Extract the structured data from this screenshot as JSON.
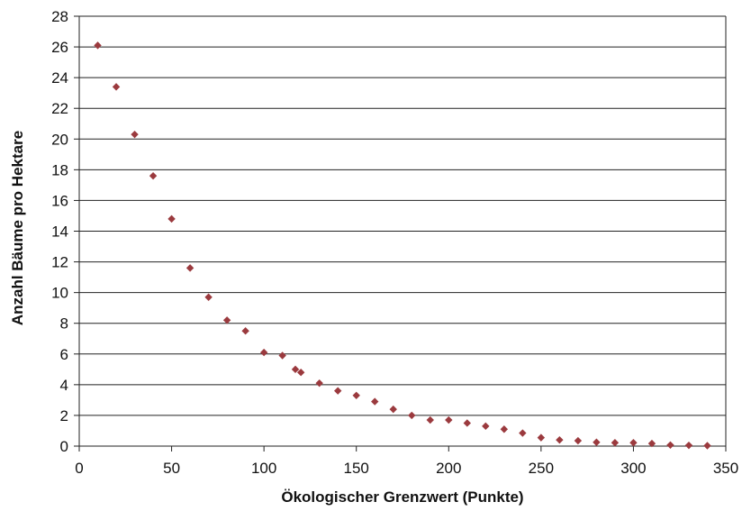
{
  "chart_data": {
    "type": "scatter",
    "title": "",
    "xlabel": "Ökologischer Grenzwert (Punkte)",
    "ylabel": "Anzahl Bäume pro Hektare",
    "xlim": [
      0,
      350
    ],
    "ylim": [
      0,
      28
    ],
    "xticks": [
      "0",
      "50",
      "100",
      "150",
      "200",
      "250",
      "300",
      "350"
    ],
    "yticks": [
      "0",
      "2",
      "4",
      "6",
      "8",
      "10",
      "12",
      "14",
      "16",
      "18",
      "20",
      "22",
      "24",
      "26",
      "28"
    ],
    "grid": "horizontal",
    "legend": "none",
    "marker": "diamond",
    "marker_color": "#9B3A3E",
    "series": [
      {
        "x": [
          10,
          20,
          30,
          40,
          50,
          60,
          70,
          80,
          90,
          100,
          110,
          117,
          120,
          130,
          140,
          150,
          160,
          170,
          180,
          190,
          200,
          210,
          220,
          230,
          240,
          250,
          260,
          270,
          280,
          290,
          300,
          310,
          320,
          330,
          340
        ],
        "y": [
          26.1,
          23.4,
          20.3,
          17.6,
          14.8,
          11.6,
          9.7,
          8.2,
          7.5,
          6.1,
          5.9,
          5.0,
          4.8,
          4.1,
          3.6,
          3.3,
          2.9,
          2.4,
          2.0,
          1.7,
          1.7,
          1.5,
          1.3,
          1.1,
          0.85,
          0.55,
          0.4,
          0.35,
          0.25,
          0.22,
          0.22,
          0.17,
          0.07,
          0.05,
          0.03
        ]
      }
    ]
  }
}
